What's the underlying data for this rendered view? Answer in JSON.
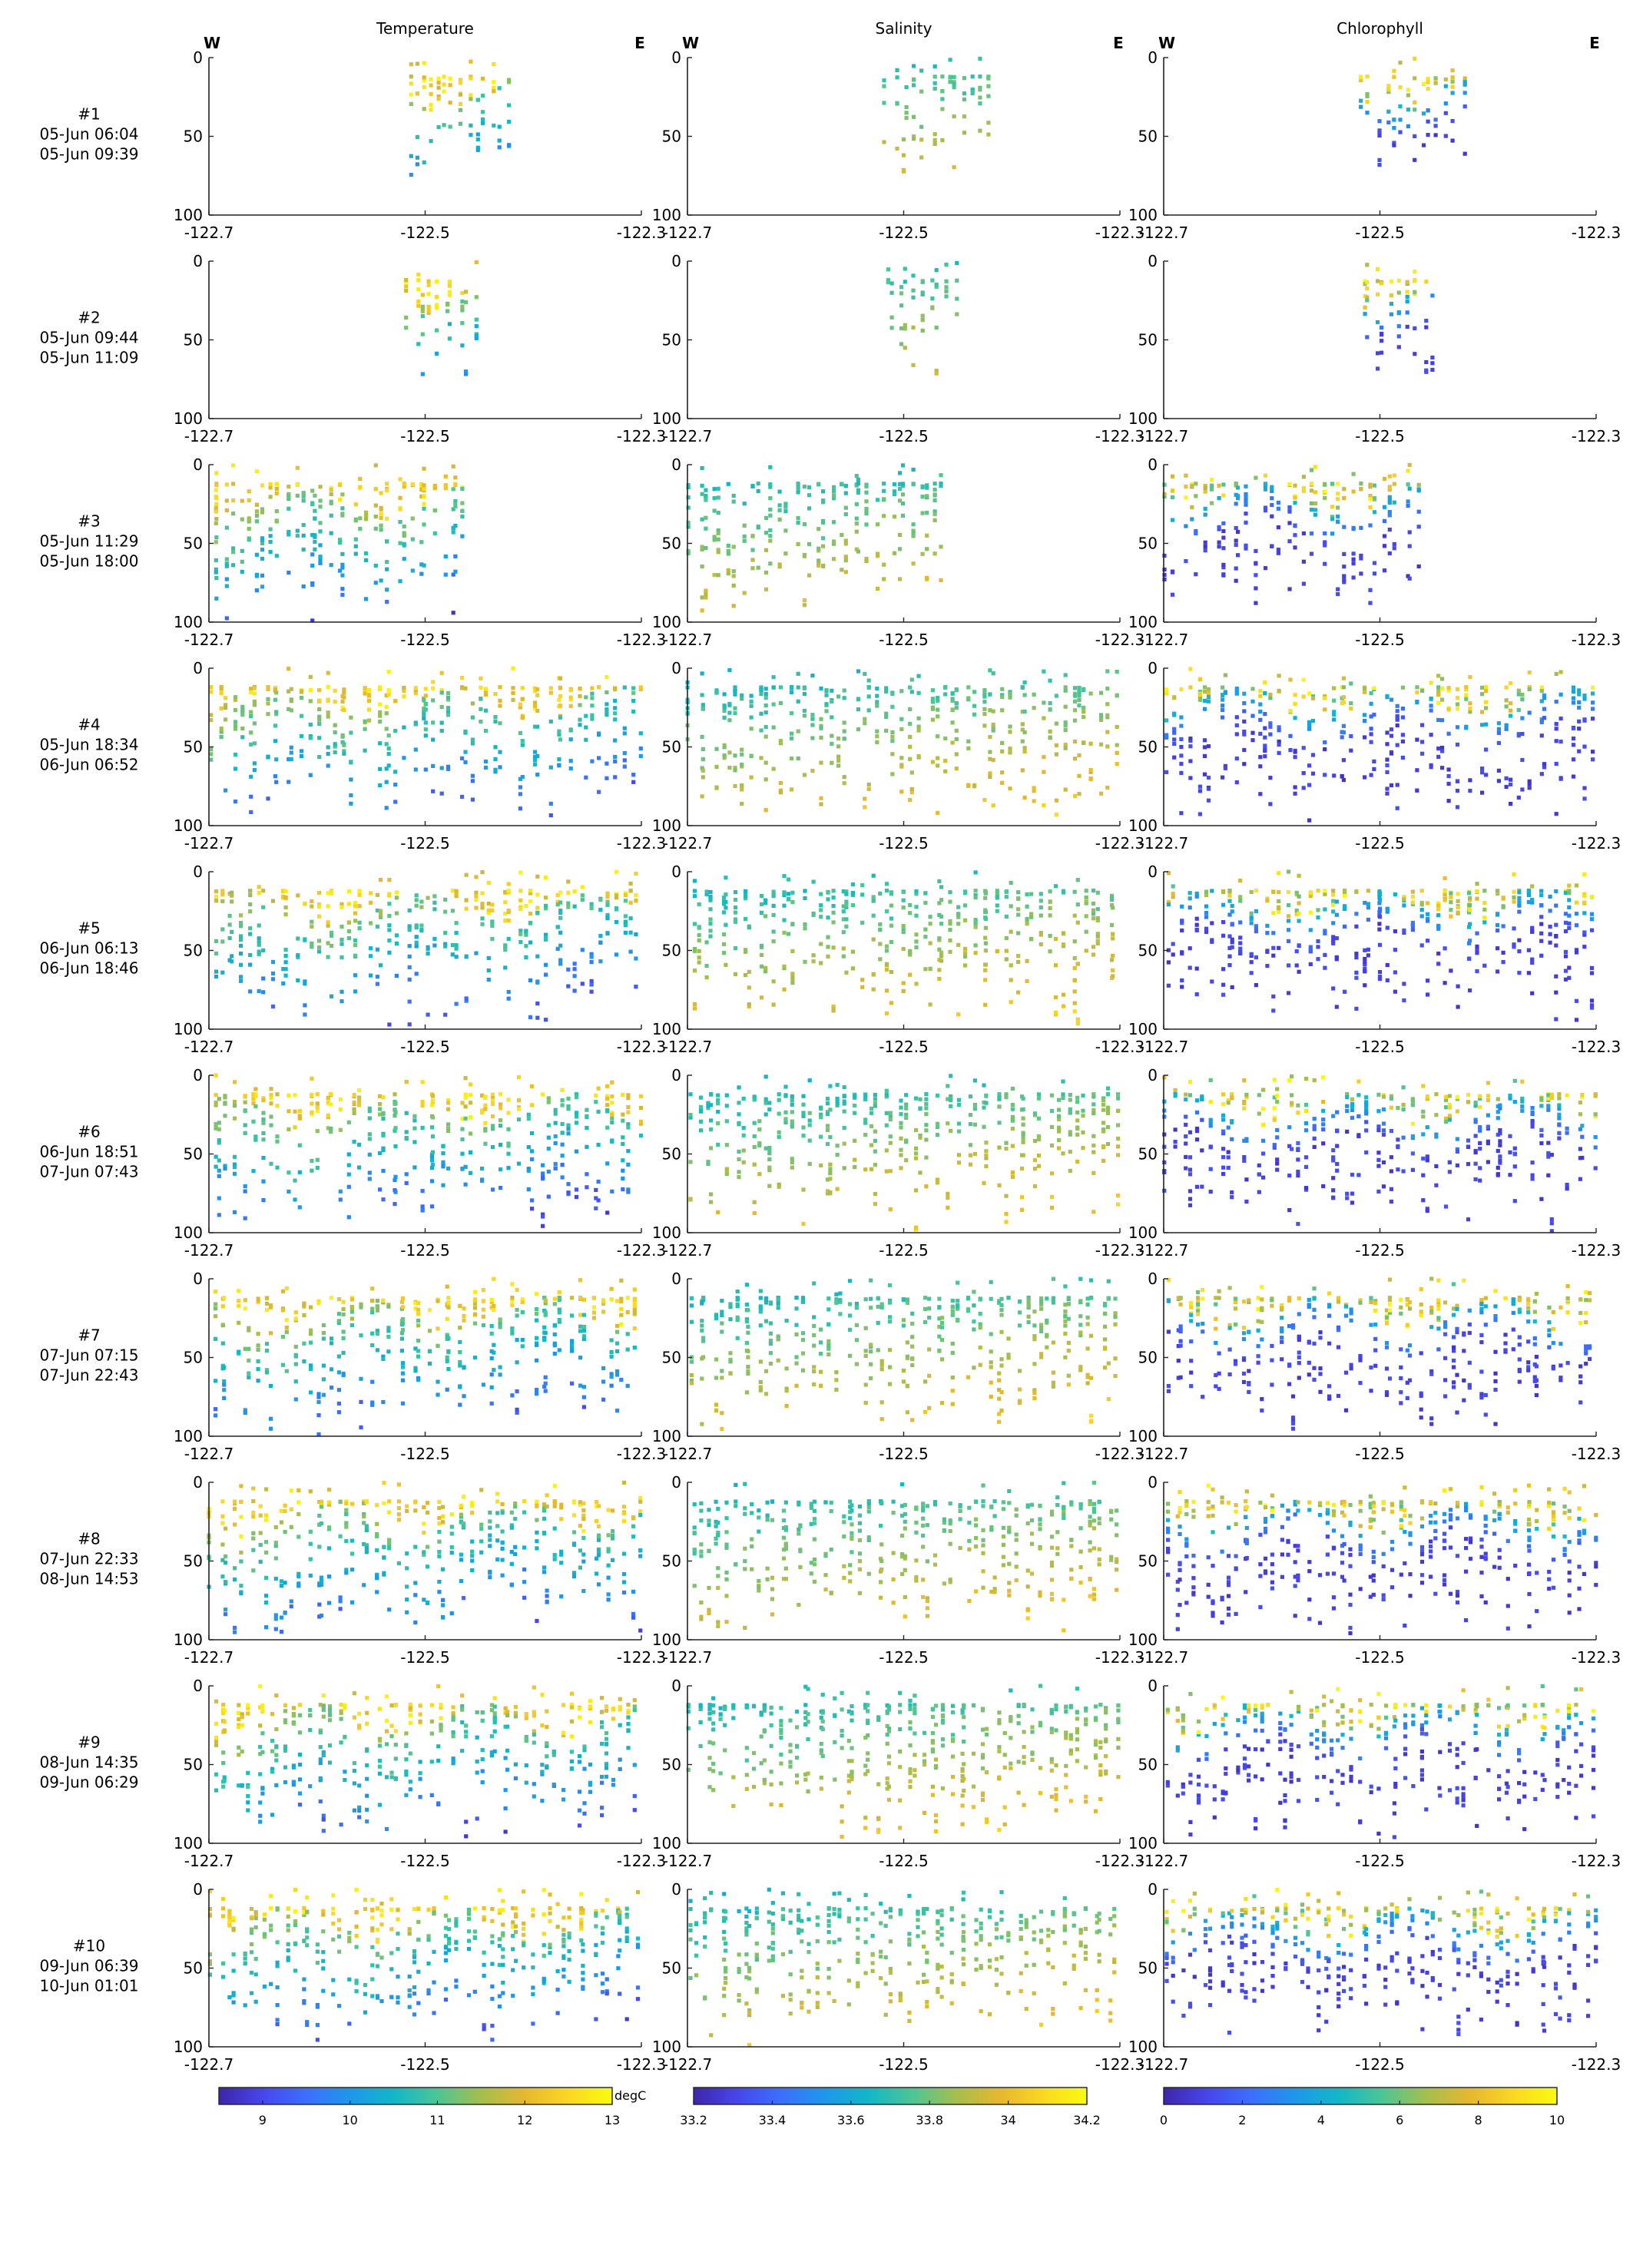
{
  "chart_data": {
    "type": "scatter",
    "columns": [
      {
        "title": "Temperature",
        "west": "W",
        "east": "E",
        "colorbar": {
          "ticks": [
            "9",
            "10",
            "11",
            "12",
            "13"
          ],
          "tick_values": [
            9,
            10,
            11,
            12,
            13
          ],
          "range": [
            8.5,
            13
          ],
          "unit": "degC"
        }
      },
      {
        "title": "Salinity",
        "west": "W",
        "east": "E",
        "colorbar": {
          "ticks": [
            "33.2",
            "33.4",
            "33.6",
            "33.8",
            "34",
            "34.2"
          ],
          "tick_values": [
            33.2,
            33.4,
            33.6,
            33.8,
            34,
            34.2
          ],
          "range": [
            33.2,
            34.2
          ],
          "unit": ""
        }
      },
      {
        "title": "Chlorophyll",
        "west": "W",
        "east": "E",
        "colorbar": {
          "ticks": [
            "0",
            "2",
            "4",
            "6",
            "8",
            "10"
          ],
          "tick_values": [
            0,
            2,
            4,
            6,
            8,
            10
          ],
          "range": [
            0,
            10
          ],
          "unit": ""
        }
      }
    ],
    "xlim": [
      -122.7,
      -122.3
    ],
    "ylim": [
      0,
      100
    ],
    "y_reversed": true,
    "x_tick_labels": [
      "-122.7",
      "-122.5",
      "-122.3"
    ],
    "x_tick_values": [
      -122.7,
      -122.5,
      -122.3
    ],
    "y_tick_labels": [
      "0",
      "50",
      "100"
    ],
    "y_tick_values": [
      0,
      50,
      100
    ],
    "colormap": [
      "#3e26a8",
      "#4746eb",
      "#3c6ffd",
      "#1f97ea",
      "#13b6c8",
      "#4dc594",
      "#a5be4e",
      "#e6b730",
      "#fbd723",
      "#f9fb0e"
    ],
    "rows": [
      {
        "id": "#1",
        "start": "05-Jun 06:04",
        "end": "05-Jun 09:39",
        "lon_range": [
          -122.52,
          -122.42
        ]
      },
      {
        "id": "#2",
        "start": "05-Jun 09:44",
        "end": "05-Jun 11:09",
        "lon_range": [
          -122.52,
          -122.45
        ]
      },
      {
        "id": "#3",
        "start": "05-Jun 11:29",
        "end": "05-Jun 18:00",
        "lon_range": [
          -122.7,
          -122.46
        ]
      },
      {
        "id": "#4",
        "start": "05-Jun 18:34",
        "end": "06-Jun 06:52",
        "lon_range": [
          -122.7,
          -122.3
        ]
      },
      {
        "id": "#5",
        "start": "06-Jun 06:13",
        "end": "06-Jun 18:46",
        "lon_range": [
          -122.7,
          -122.3
        ]
      },
      {
        "id": "#6",
        "start": "06-Jun 18:51",
        "end": "07-Jun 07:43",
        "lon_range": [
          -122.7,
          -122.3
        ]
      },
      {
        "id": "#7",
        "start": "07-Jun 07:15",
        "end": "07-Jun 22:43",
        "lon_range": [
          -122.7,
          -122.3
        ]
      },
      {
        "id": "#8",
        "start": "07-Jun 22:33",
        "end": "08-Jun 14:53",
        "lon_range": [
          -122.7,
          -122.3
        ]
      },
      {
        "id": "#9",
        "start": "08-Jun 14:35",
        "end": "09-Jun 06:29",
        "lon_range": [
          -122.7,
          -122.3
        ]
      },
      {
        "id": "#10",
        "start": "09-Jun 06:39",
        "end": "10-Jun 01:01",
        "lon_range": [
          -122.7,
          -122.3
        ]
      }
    ]
  }
}
